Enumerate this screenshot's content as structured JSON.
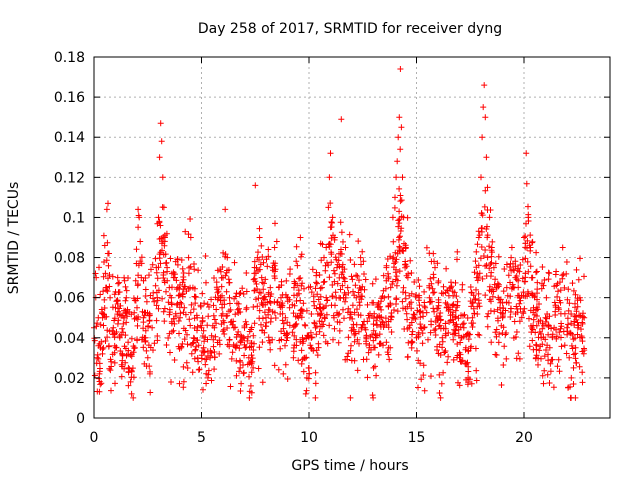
{
  "chart_data": {
    "type": "scatter",
    "title": "Day 258 of 2017, SRMTID for receiver dyng",
    "xlabel": "GPS time / hours",
    "ylabel": "SRMTID / TECUs",
    "xlim": [
      0,
      24.0
    ],
    "ylim": [
      0,
      0.18
    ],
    "x_ticks": [
      0,
      5,
      10,
      15,
      20
    ],
    "x_tick_labels": [
      "0",
      "5",
      "10",
      "15",
      "20"
    ],
    "y_ticks": [
      0,
      0.02,
      0.04,
      0.06,
      0.08,
      0.1,
      0.12,
      0.14,
      0.16,
      0.18
    ],
    "y_tick_labels": [
      "0",
      "0.02",
      "0.04",
      "0.06",
      "0.08",
      "0.1",
      "0.12",
      "0.14",
      "0.16",
      "0.18"
    ],
    "grid": true,
    "marker": "+",
    "color": "#ff0000",
    "x_data_range": [
      0,
      22.8
    ],
    "series": [
      {
        "name": "SRMTID",
        "points": [
          [
            0.0,
            0.045
          ],
          [
            0.1,
            0.07
          ],
          [
            0.15,
            0.03
          ],
          [
            0.25,
            0.022
          ],
          [
            0.3,
            0.035
          ],
          [
            0.4,
            0.05
          ],
          [
            0.5,
            0.086
          ],
          [
            0.55,
            0.065
          ],
          [
            0.6,
            0.104
          ],
          [
            0.65,
            0.107
          ],
          [
            0.7,
            0.082
          ],
          [
            0.75,
            0.06
          ],
          [
            0.8,
            0.028
          ],
          [
            0.9,
            0.045
          ],
          [
            1.0,
            0.055
          ],
          [
            1.1,
            0.07
          ],
          [
            1.2,
            0.04
          ],
          [
            1.3,
            0.032
          ],
          [
            1.4,
            0.05
          ],
          [
            1.5,
            0.06
          ],
          [
            1.6,
            0.025
          ],
          [
            1.7,
            0.018
          ],
          [
            1.75,
            0.012
          ],
          [
            1.9,
            0.035
          ],
          [
            2.0,
            0.055
          ],
          [
            2.05,
            0.104
          ],
          [
            2.1,
            0.1
          ],
          [
            2.15,
            0.088
          ],
          [
            2.2,
            0.07
          ],
          [
            2.3,
            0.05
          ],
          [
            2.4,
            0.04
          ],
          [
            2.5,
            0.03
          ],
          [
            2.6,
            0.022
          ],
          [
            2.7,
            0.045
          ],
          [
            2.8,
            0.058
          ],
          [
            2.9,
            0.075
          ],
          [
            3.0,
            0.1
          ],
          [
            3.05,
            0.13
          ],
          [
            3.1,
            0.147
          ],
          [
            3.15,
            0.138
          ],
          [
            3.2,
            0.12
          ],
          [
            3.25,
            0.105
          ],
          [
            3.3,
            0.09
          ],
          [
            3.4,
            0.075
          ],
          [
            3.5,
            0.065
          ],
          [
            3.6,
            0.06
          ],
          [
            3.7,
            0.07
          ],
          [
            3.8,
            0.078
          ],
          [
            3.9,
            0.065
          ],
          [
            4.0,
            0.05
          ],
          [
            4.2,
            0.055
          ],
          [
            4.4,
            0.08
          ],
          [
            4.5,
            0.09
          ],
          [
            4.6,
            0.065
          ],
          [
            4.8,
            0.05
          ],
          [
            5.0,
            0.045
          ],
          [
            5.1,
            0.035
          ],
          [
            5.3,
            0.02
          ],
          [
            5.4,
            0.03
          ],
          [
            5.6,
            0.045
          ],
          [
            5.8,
            0.06
          ],
          [
            6.0,
            0.07
          ],
          [
            6.1,
            0.104
          ],
          [
            6.2,
            0.08
          ],
          [
            6.3,
            0.06
          ],
          [
            6.5,
            0.045
          ],
          [
            6.6,
            0.035
          ],
          [
            6.8,
            0.025
          ],
          [
            7.0,
            0.045
          ],
          [
            7.1,
            0.055
          ],
          [
            7.2,
            0.03
          ],
          [
            7.3,
            0.016
          ],
          [
            7.4,
            0.025
          ],
          [
            7.5,
            0.116
          ],
          [
            7.6,
            0.08
          ],
          [
            7.7,
            0.09
          ],
          [
            7.8,
            0.07
          ],
          [
            7.9,
            0.06
          ],
          [
            8.0,
            0.05
          ],
          [
            8.2,
            0.065
          ],
          [
            8.3,
            0.075
          ],
          [
            8.4,
            0.085
          ],
          [
            8.5,
            0.088
          ],
          [
            8.7,
            0.06
          ],
          [
            8.9,
            0.05
          ],
          [
            9.0,
            0.04
          ],
          [
            9.1,
            0.055
          ],
          [
            9.3,
            0.065
          ],
          [
            9.5,
            0.05
          ],
          [
            9.6,
            0.09
          ],
          [
            9.7,
            0.04
          ],
          [
            9.8,
            0.03
          ],
          [
            9.85,
            0.012
          ],
          [
            9.9,
            0.02
          ],
          [
            10.0,
            0.025
          ],
          [
            10.1,
            0.035
          ],
          [
            10.3,
            0.045
          ],
          [
            10.5,
            0.055
          ],
          [
            10.6,
            0.065
          ],
          [
            10.7,
            0.08
          ],
          [
            10.8,
            0.085
          ],
          [
            10.9,
            0.105
          ],
          [
            10.95,
            0.12
          ],
          [
            11.0,
            0.132
          ],
          [
            11.1,
            0.1
          ],
          [
            11.2,
            0.09
          ],
          [
            11.3,
            0.075
          ],
          [
            11.4,
            0.06
          ],
          [
            11.5,
            0.149
          ],
          [
            11.6,
            0.07
          ],
          [
            11.7,
            0.085
          ],
          [
            11.8,
            0.065
          ],
          [
            11.9,
            0.05
          ],
          [
            12.0,
            0.045
          ],
          [
            12.2,
            0.06
          ],
          [
            12.4,
            0.08
          ],
          [
            12.6,
            0.045
          ],
          [
            12.8,
            0.035
          ],
          [
            13.0,
            0.025
          ],
          [
            13.1,
            0.04
          ],
          [
            13.3,
            0.05
          ],
          [
            13.5,
            0.06
          ],
          [
            13.6,
            0.075
          ],
          [
            13.8,
            0.065
          ],
          [
            13.9,
            0.1
          ],
          [
            14.0,
            0.11
          ],
          [
            14.05,
            0.12
          ],
          [
            14.1,
            0.128
          ],
          [
            14.15,
            0.14
          ],
          [
            14.2,
            0.15
          ],
          [
            14.25,
            0.174
          ],
          [
            14.3,
            0.145
          ],
          [
            14.35,
            0.12
          ],
          [
            14.4,
            0.1
          ],
          [
            14.5,
            0.085
          ],
          [
            14.6,
            0.07
          ],
          [
            14.8,
            0.05
          ],
          [
            15.0,
            0.04
          ],
          [
            15.2,
            0.045
          ],
          [
            15.4,
            0.055
          ],
          [
            15.6,
            0.06
          ],
          [
            15.8,
            0.07
          ],
          [
            16.0,
            0.05
          ],
          [
            16.2,
            0.04
          ],
          [
            16.4,
            0.055
          ],
          [
            16.6,
            0.065
          ],
          [
            16.8,
            0.05
          ],
          [
            17.0,
            0.03
          ],
          [
            17.2,
            0.045
          ],
          [
            17.3,
            0.035
          ],
          [
            17.4,
            0.02
          ],
          [
            17.6,
            0.05
          ],
          [
            17.8,
            0.07
          ],
          [
            17.9,
            0.09
          ],
          [
            18.0,
            0.12
          ],
          [
            18.05,
            0.14
          ],
          [
            18.1,
            0.155
          ],
          [
            18.15,
            0.166
          ],
          [
            18.2,
            0.15
          ],
          [
            18.25,
            0.13
          ],
          [
            18.3,
            0.115
          ],
          [
            18.4,
            0.1
          ],
          [
            18.5,
            0.085
          ],
          [
            18.6,
            0.075
          ],
          [
            18.8,
            0.06
          ],
          [
            19.0,
            0.05
          ],
          [
            19.2,
            0.065
          ],
          [
            19.4,
            0.08
          ],
          [
            19.6,
            0.07
          ],
          [
            19.8,
            0.06
          ],
          [
            20.0,
            0.09
          ],
          [
            20.1,
            0.132
          ],
          [
            20.2,
            0.1
          ],
          [
            20.3,
            0.085
          ],
          [
            20.4,
            0.07
          ],
          [
            20.6,
            0.055
          ],
          [
            20.8,
            0.04
          ],
          [
            21.0,
            0.05
          ],
          [
            21.2,
            0.035
          ],
          [
            21.4,
            0.045
          ],
          [
            21.6,
            0.055
          ],
          [
            21.8,
            0.085
          ],
          [
            22.0,
            0.045
          ],
          [
            22.1,
            0.03
          ],
          [
            22.2,
            0.02
          ],
          [
            22.3,
            0.025
          ],
          [
            22.4,
            0.035
          ],
          [
            22.5,
            0.045
          ],
          [
            22.6,
            0.06
          ],
          [
            22.7,
            0.04
          ],
          [
            22.8,
            0.05
          ]
        ]
      }
    ]
  }
}
